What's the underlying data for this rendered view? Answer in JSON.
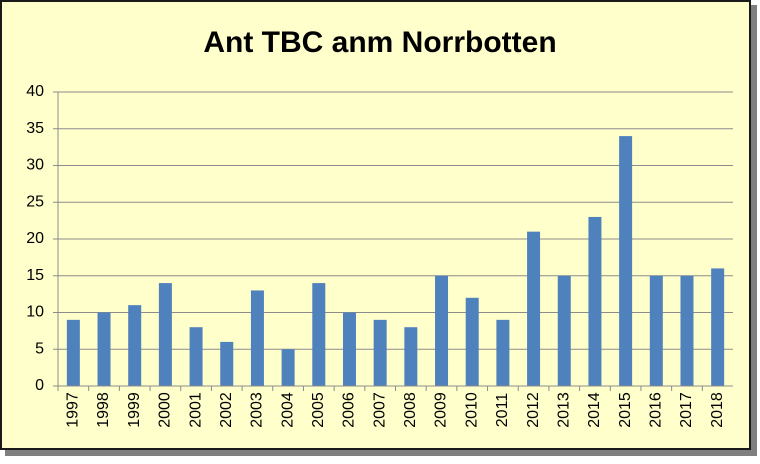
{
  "chart_data": {
    "type": "bar",
    "title": "Ant TBC anm Norrbotten",
    "categories": [
      "1997",
      "1998",
      "1999",
      "2000",
      "2001",
      "2002",
      "2003",
      "2004",
      "2005",
      "2006",
      "2007",
      "2008",
      "2009",
      "2010",
      "2011",
      "2012",
      "2013",
      "2014",
      "2015",
      "2016",
      "2017",
      "2018"
    ],
    "values": [
      9,
      10,
      11,
      14,
      8,
      6,
      13,
      5,
      14,
      10,
      9,
      8,
      15,
      12,
      9,
      21,
      15,
      23,
      34,
      15,
      15,
      16
    ],
    "color": "#4f81bd",
    "ylim": [
      0,
      40
    ],
    "yticks": [
      0,
      5,
      10,
      15,
      20,
      25,
      30,
      35,
      40
    ],
    "grid": true
  }
}
